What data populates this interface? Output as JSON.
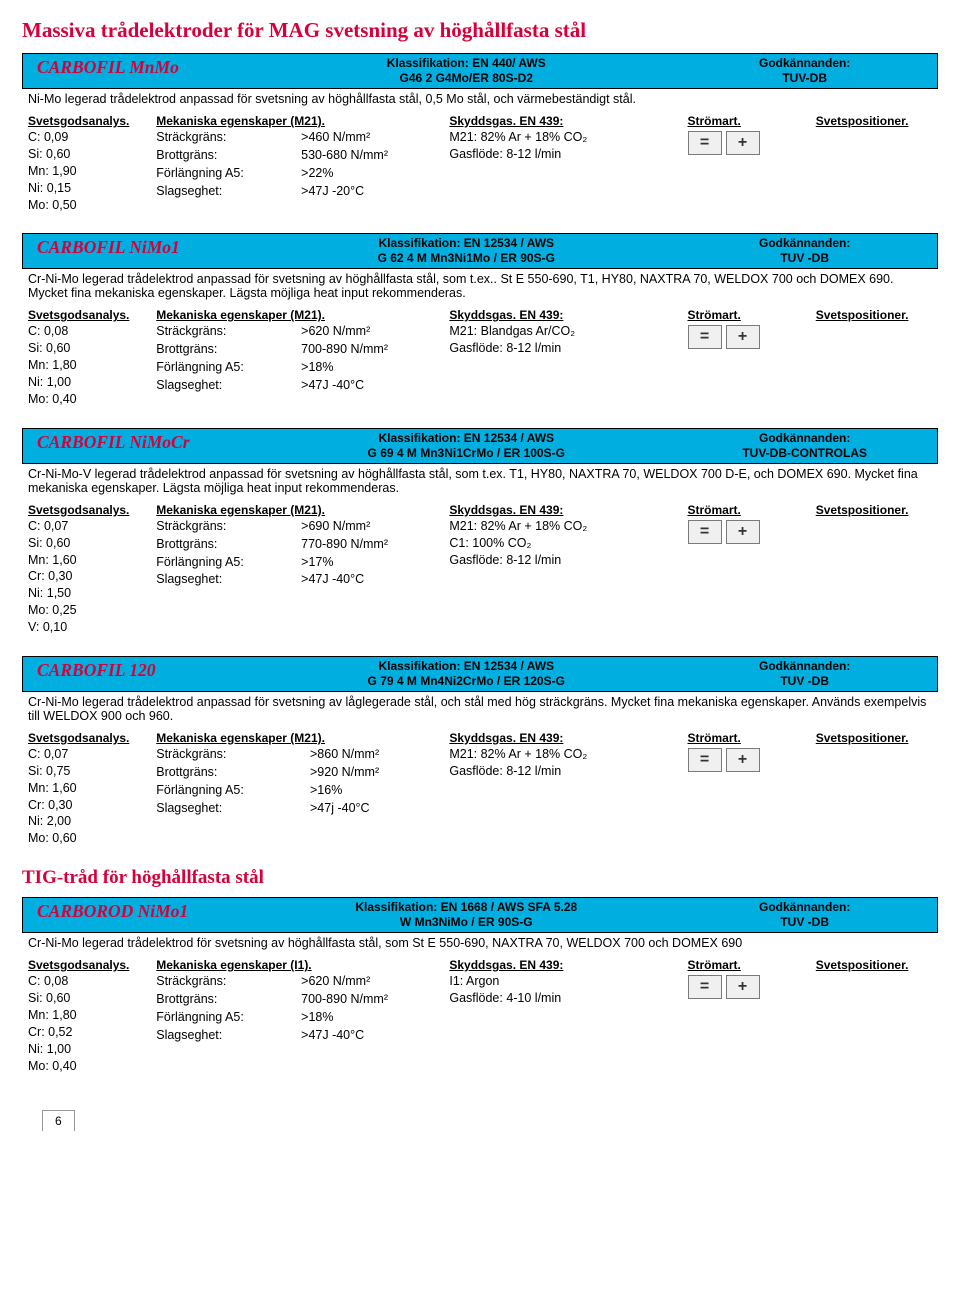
{
  "page_title": "Massiva trådelektroder för MAG svetsning av höghållfasta stål",
  "tig_title": "TIG-tråd för höghållfasta stål",
  "labels": {
    "class": "Klassifikation:",
    "appr": "Godkännanden:",
    "analys": "Svetsgodsanalys.",
    "mech_m21": "Mekaniska egenskaper (M21).",
    "mech_i1": "Mekaniska egenskaper (I1).",
    "gas": "Skyddsgas. EN 439:",
    "stro": "Strömart.",
    "svet": "Svetspositioner."
  },
  "page_number": "6",
  "products": [
    {
      "id": "mnmo",
      "name": "CARBOFIL MnMo",
      "class_l1": "Klassifikation: EN 440/ AWS",
      "class_l2": "G46 2 G4Mo/ER 80S-D2",
      "appr_l1": "Godkännanden:",
      "appr_l2": "TUV-DB",
      "desc": "Ni-Mo legerad trådelektrod anpassad för svetsning av höghållfasta stål, 0,5 Mo stål, och värmebeständigt stål.",
      "analys": [
        "C:  0,09",
        "Si:  0,60",
        "Mn: 1,90",
        "Ni:  0,15",
        "Mo: 0,50"
      ],
      "mech_header": "Mekaniska egenskaper (M21).",
      "mech": [
        [
          "Sträckgräns:",
          ">460 N/mm²"
        ],
        [
          "Brottgräns:",
          "530-680 N/mm²"
        ],
        [
          "Förlängning A5:",
          ">22%"
        ],
        [
          "Slagseghet:",
          ">47J -20°C"
        ]
      ],
      "gas": [
        "M21:  82% Ar + 18% CO₂",
        "Gasflöde: 8-12 l/min"
      ]
    },
    {
      "id": "nimo1",
      "name": "CARBOFIL NiMo1",
      "class_l1": "Klassifikation: EN 12534 / AWS",
      "class_l2": "G 62 4 M Mn3Ni1Mo / ER 90S-G",
      "appr_l1": "Godkännanden:",
      "appr_l2": "TUV -DB",
      "desc": "Cr-Ni-Mo legerad trådelektrod anpassad för svetsning av höghållfasta stål, som t.ex.. St E 550-690, T1, HY80, NAXTRA 70, WELDOX 700 och DOMEX 690. Mycket fina mekaniska egenskaper. Lägsta möjliga heat input rekommenderas.",
      "analys": [
        "C:  0,08",
        "Si:  0,60",
        "Mn: 1,80",
        "Ni:  1,00",
        "Mo: 0,40"
      ],
      "mech_header": "Mekaniska egenskaper (M21).",
      "mech": [
        [
          "Sträckgräns:",
          ">620 N/mm²"
        ],
        [
          "Brottgräns:",
          "700-890 N/mm²"
        ],
        [
          "Förlängning A5:",
          ">18%"
        ],
        [
          "Slagseghet:",
          ">47J -40°C"
        ]
      ],
      "gas": [
        "M21:  Blandgas Ar/CO₂",
        "Gasflöde: 8-12 l/min"
      ]
    },
    {
      "id": "nimocr",
      "name": "CARBOFIL NiMoCr",
      "class_l1": "Klassifikation: EN 12534 / AWS",
      "class_l2": "G 69 4 M Mn3Ni1CrMo / ER 100S-G",
      "appr_l1": "Godkännanden:",
      "appr_l2": "TUV-DB-CONTROLAS",
      "desc": "Cr-Ni-Mo-V legerad trådelektrod anpassad för svetsning av höghållfasta stål, som t.ex. T1, HY80, NAXTRA 70, WELDOX 700 D-E, och DOMEX 690. Mycket fina mekaniska egenskaper. Lägsta möjliga heat input rekommenderas.",
      "analys": [
        "C:  0,07",
        "Si:  0,60",
        "Mn: 1,60",
        "Cr:  0,30",
        "Ni:  1,50",
        "Mo: 0,25",
        "V:   0,10"
      ],
      "mech_header": "Mekaniska egenskaper (M21).",
      "mech": [
        [
          "Sträckgräns:",
          ">690 N/mm²"
        ],
        [
          "Brottgräns:",
          "770-890 N/mm²"
        ],
        [
          "Förlängning A5:",
          ">17%"
        ],
        [
          "Slagseghet:",
          ">47J -40°C"
        ]
      ],
      "gas": [
        "M21:  82% Ar + 18% CO₂",
        "C1:   100% CO₂",
        "Gasflöde: 8-12 l/min"
      ]
    },
    {
      "id": "c120",
      "name": "CARBOFIL 120",
      "class_l1": "Klassifikation: EN 12534 / AWS",
      "class_l2": "G 79 4 M Mn4Ni2CrMo / ER 120S-G",
      "appr_l1": "Godkännanden:",
      "appr_l2": "TUV -DB",
      "desc": "Cr-Ni-Mo legerad trådelektrod anpassad för svetsning av låglegerade stål, och stål med hög sträckgräns. Mycket fina mekaniska egenskaper. Används exempelvis till WELDOX 900 och 960.",
      "analys": [
        "C:  0,07",
        "Si:  0,75",
        "Mn: 1,60",
        "Cr:  0,30",
        "Ni:  2,00",
        "Mo: 0,60"
      ],
      "mech_header": "Mekaniska egenskaper (M21).",
      "mech": [
        [
          "Sträckgräns:",
          ">860 N/mm²"
        ],
        [
          "Brottgräns:",
          ">920 N/mm²"
        ],
        [
          "Förlängning A5:",
          ">16%"
        ],
        [
          "Slagseghet:",
          ">47j -40°C"
        ]
      ],
      "gas": [
        "M21:  82% Ar + 18% CO₂",
        "Gasflöde: 8-12 l/min"
      ]
    },
    {
      "id": "rod_nimo1",
      "name": "CARBOROD NiMo1",
      "class_l1": "Klassifikation: EN 1668 / AWS SFA 5.28",
      "class_l2": "W Mn3NiMo / ER 90S-G",
      "appr_l1": "Godkännanden:",
      "appr_l2": "TUV -DB",
      "desc": "Cr-Ni-Mo legerad trådelektrod för svetsning av höghållfasta stål, som St E 550-690, NAXTRA 70, WELDOX 700 och DOMEX 690",
      "analys": [
        "C:  0,08",
        "Si:  0,60",
        "Mn: 1,80",
        "Cr:  0,52",
        "Ni:  1,00",
        "Mo: 0,40"
      ],
      "mech_header": "Mekaniska egenskaper (I1).",
      "mech": [
        [
          "Sträckgräns:",
          ">620 N/mm²"
        ],
        [
          "Brottgräns:",
          "700-890 N/mm²"
        ],
        [
          "Förlängning A5:",
          ">18%"
        ],
        [
          "Slagseghet:",
          ">47J -40°C"
        ]
      ],
      "gas": [
        "I1: Argon",
        "Gasflöde: 4-10 l/min"
      ]
    }
  ]
}
